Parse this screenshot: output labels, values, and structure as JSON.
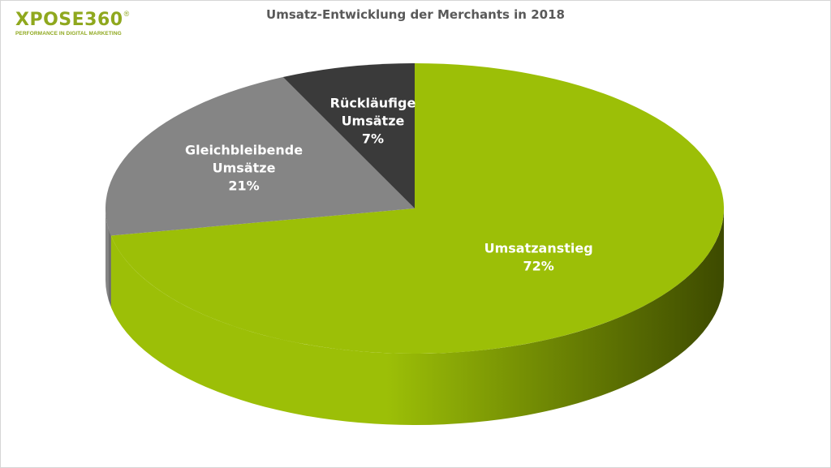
{
  "logo": {
    "name": "XPOSE360",
    "registered": "®",
    "tagline": "PERFORMANCE IN DIGITAL MARKETING"
  },
  "chart_data": {
    "type": "pie",
    "title": "Umsatz-Entwicklung der Merchants in 2018",
    "slices": [
      {
        "label": [
          "Umsatzanstieg"
        ],
        "value": 72,
        "value_label": "72%",
        "color": "#9cbf07",
        "side_dark": "#3d4a00",
        "label_color": "#ffffff"
      },
      {
        "label": [
          "Gleichbleibende",
          "Umsätze"
        ],
        "value": 21,
        "value_label": "21%",
        "color": "#858585",
        "side_dark": "#5a5a5a",
        "label_color": "#ffffff"
      },
      {
        "label": [
          "Rückläufige",
          "Umsätze"
        ],
        "value": 7,
        "value_label": "7%",
        "color": "#3a3a3a",
        "side_dark": "#222222",
        "label_color": "#ffffff"
      }
    ],
    "legend": "none",
    "style": "3d"
  }
}
